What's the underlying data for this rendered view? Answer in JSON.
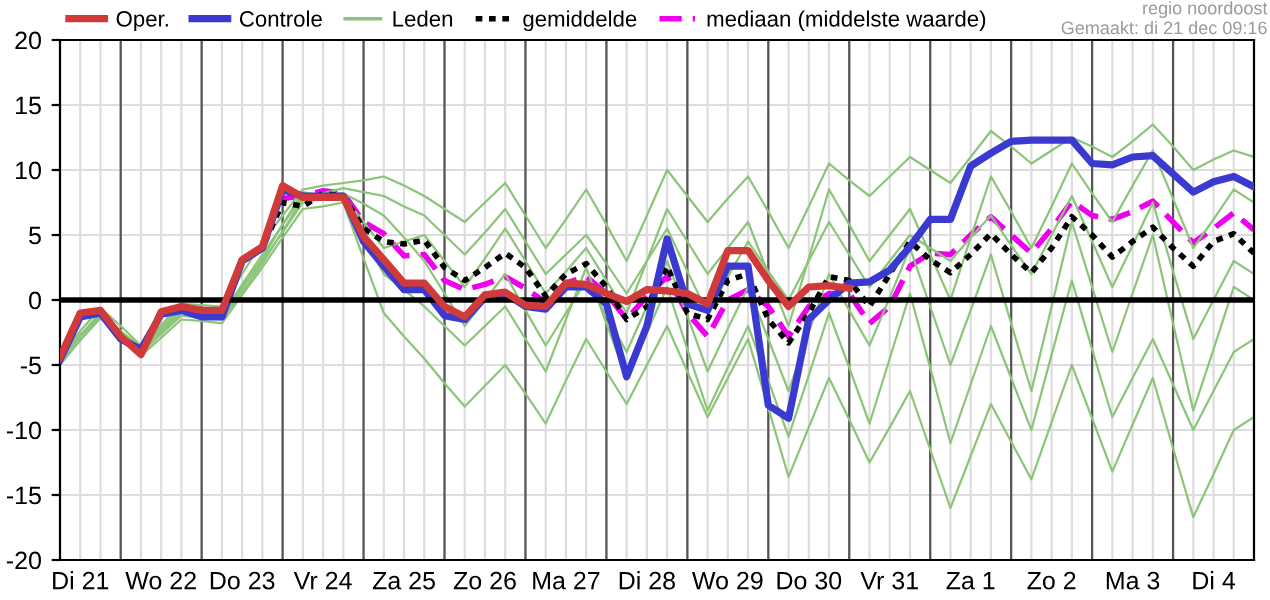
{
  "chart_data": {
    "type": "line",
    "annotations": [
      "regio noordoost",
      "Gemaakt: di 21 dec 09:16"
    ],
    "categories": [
      null,
      "Di 21",
      null,
      null,
      null,
      "Wo 22",
      null,
      null,
      null,
      "Do 23",
      null,
      null,
      null,
      "Vr 24",
      null,
      null,
      null,
      "Za 25",
      null,
      null,
      null,
      "Zo 26",
      null,
      null,
      null,
      "Ma 27",
      null,
      null,
      null,
      "Di 28",
      null,
      null,
      null,
      "Wo 29",
      null,
      null,
      null,
      "Do 30",
      null,
      null,
      null,
      "Vr 31",
      null,
      null,
      null,
      "Za 1",
      null,
      null,
      null,
      "Zo 2",
      null,
      null,
      null,
      "Ma 3",
      null,
      null,
      null,
      "Di 4",
      null,
      null
    ],
    "ylim": [
      -20,
      20
    ],
    "yticks": [
      -20,
      -15,
      -10,
      -5,
      0,
      5,
      10,
      15,
      20
    ],
    "grid": true,
    "legend": "top left",
    "marker": "none",
    "ref_lines": [
      {
        "axis": "y",
        "value": 0,
        "color": "#000000"
      }
    ],
    "series": [
      {
        "name": "Oper.",
        "color": "#d03a3a",
        "line_style": "solid",
        "values": [
          -4.4,
          -1.0,
          -0.8,
          -2.8,
          -4.2,
          -0.9,
          -0.5,
          -0.8,
          -0.8,
          3.1,
          4.1,
          8.8,
          7.9,
          7.9,
          7.9,
          4.9,
          3.1,
          1.3,
          1.3,
          -0.5,
          -1.3,
          0.4,
          0.6,
          -0.4,
          -0.5,
          1.3,
          1.2,
          0.5,
          -0.1,
          0.8,
          0.7,
          0.5,
          -0.3,
          3.8,
          3.8,
          1.5,
          -0.5,
          1.0,
          1.1,
          0.9,
          null,
          null,
          null,
          null,
          null,
          null,
          null,
          null,
          null,
          null,
          null,
          null,
          null,
          null,
          null,
          null,
          null,
          null,
          null,
          null
        ]
      },
      {
        "name": "Controle",
        "color": "#3a3ad0",
        "line_style": "solid",
        "values": [
          -4.6,
          -1.3,
          -1.0,
          -3.0,
          -3.8,
          -1.1,
          -0.8,
          -1.3,
          -1.3,
          3.0,
          4.0,
          8.5,
          8.0,
          8.0,
          8.0,
          4.5,
          2.6,
          0.8,
          0.8,
          -1.2,
          -1.5,
          0.2,
          0.5,
          -0.5,
          -0.7,
          1.0,
          1.0,
          -0.3,
          -5.9,
          -2.0,
          4.7,
          -0.3,
          -0.8,
          2.6,
          2.6,
          -8.1,
          -9.1,
          -1.5,
          0.0,
          1.3,
          1.4,
          2.3,
          4.1,
          6.2,
          6.2,
          10.3,
          11.3,
          12.2,
          12.3,
          12.3,
          12.3,
          10.5,
          10.4,
          11.0,
          11.1,
          9.7,
          8.3,
          9.1,
          9.5,
          8.7
        ]
      },
      {
        "name": "Leden",
        "color": "#8cc47a",
        "line_style": "solid",
        "values": [
          -4.2,
          -2.4,
          -0.6,
          -2.0,
          -3.5,
          -1.9,
          -0.3,
          -0.4,
          -0.5,
          2.0,
          4.5,
          6.5,
          8.5,
          8.8,
          9.0,
          9.2,
          9.5,
          8.8,
          8.0,
          7.0,
          6.0,
          7.5,
          9.0,
          6.5,
          4.0,
          6.2,
          8.5,
          5.8,
          3.0,
          6.5,
          10.0,
          8.0,
          6.0,
          7.8,
          9.5,
          6.8,
          4.0,
          7.2,
          10.5,
          9.2,
          8.0,
          9.5,
          11.0,
          10.0,
          9.0,
          11.0,
          13.0,
          11.8,
          10.5,
          11.5,
          12.5,
          11.8,
          11.0,
          12.2,
          13.5,
          11.8,
          10.0,
          10.8,
          11.5,
          11.0
        ]
      },
      {
        "color": "#8cc47a",
        "line_style": "solid",
        "values": [
          -5.0,
          -3.1,
          -1.2,
          -2.8,
          -4.3,
          -2.9,
          -1.5,
          -1.6,
          -1.8,
          0.4,
          2.5,
          4.8,
          7.0,
          7.2,
          7.5,
          3.2,
          -1.0,
          -2.8,
          -4.5,
          -6.4,
          -8.2,
          -6.6,
          -5.0,
          -7.2,
          -9.5,
          -6.2,
          -3.0,
          -5.5,
          -8.0,
          -5.0,
          -2.0,
          -5.5,
          -9.0,
          -6.0,
          -3.0,
          -8.3,
          -13.6,
          -9.8,
          -6.0,
          -9.2,
          -12.5,
          -9.8,
          -7.0,
          -11.5,
          -16.0,
          -12.0,
          -8.0,
          -10.9,
          -13.8,
          -9.4,
          -5.0,
          -9.1,
          -13.2,
          -9.6,
          -6.0,
          -11.4,
          -16.7,
          -13.4,
          -10.0,
          -9.0
        ]
      },
      {
        "color": "#8cc47a",
        "line_style": "solid",
        "values": [
          -4.6,
          -2.8,
          -0.9,
          -2.4,
          -3.8,
          -2.3,
          -0.8,
          -1.0,
          -1.2,
          1.2,
          3.5,
          5.8,
          8.0,
          8.1,
          8.2,
          7.4,
          6.5,
          4.8,
          3.0,
          0.5,
          -2.0,
          0.0,
          2.0,
          -0.8,
          -3.5,
          -1.0,
          1.5,
          -1.2,
          -4.0,
          -0.5,
          3.0,
          -1.2,
          -5.5,
          -2.2,
          1.0,
          -3.0,
          -7.0,
          -2.5,
          2.0,
          -0.8,
          -3.5,
          0.2,
          4.0,
          -0.5,
          -5.0,
          -0.8,
          3.5,
          -1.8,
          -7.0,
          -0.5,
          6.0,
          1.0,
          -4.0,
          0.5,
          5.0,
          -1.8,
          -8.5,
          -3.8,
          1.0,
          0.0
        ]
      },
      {
        "color": "#8cc47a",
        "line_style": "solid",
        "values": [
          -4.5,
          -2.8,
          -1.0,
          -2.5,
          -4.0,
          -2.5,
          -1.0,
          -1.0,
          -1.0,
          1.0,
          3.0,
          5.2,
          7.5,
          7.8,
          8.0,
          6.0,
          4.0,
          4.5,
          5.0,
          3.0,
          1.0,
          3.2,
          5.5,
          3.0,
          0.5,
          2.2,
          4.0,
          1.5,
          -1.0,
          3.0,
          7.0,
          4.5,
          2.0,
          4.0,
          6.0,
          2.0,
          -2.0,
          3.2,
          8.5,
          5.8,
          3.0,
          5.0,
          7.0,
          3.5,
          0.0,
          4.8,
          9.5,
          6.8,
          4.0,
          7.2,
          10.5,
          8.2,
          6.0,
          8.8,
          11.5,
          7.8,
          4.0,
          6.2,
          8.5,
          7.5
        ]
      },
      {
        "color": "#8cc47a",
        "line_style": "solid",
        "values": [
          -4.3,
          -2.7,
          -1.1,
          -2.4,
          -3.6,
          -2.1,
          -0.6,
          -1.0,
          -1.4,
          0.9,
          3.2,
          5.8,
          8.3,
          8.0,
          7.8,
          4.9,
          2.0,
          0.8,
          -0.5,
          -2.0,
          -3.5,
          -2.0,
          -0.5,
          -3.0,
          -5.5,
          -1.5,
          2.5,
          -1.8,
          -6.0,
          -2.5,
          1.0,
          -3.8,
          -8.5,
          -5.2,
          -2.0,
          -6.2,
          -10.5,
          -5.8,
          -1.0,
          -5.2,
          -9.5,
          -4.5,
          0.5,
          -5.2,
          -11.0,
          -6.5,
          -2.0,
          -6.0,
          -10.0,
          -4.2,
          1.5,
          -3.8,
          -9.0,
          -6.0,
          -3.0,
          -6.5,
          -10.0,
          -7.0,
          -4.0,
          -3.0
        ]
      },
      {
        "color": "#8cc47a",
        "line_style": "solid",
        "values": [
          -4.8,
          -3.1,
          -1.4,
          -2.8,
          -4.1,
          -2.6,
          -1.2,
          -1.4,
          -1.5,
          0.6,
          2.8,
          5.3,
          7.8,
          8.2,
          8.6,
          8.3,
          8.0,
          7.2,
          6.5,
          5.0,
          3.5,
          5.2,
          7.0,
          4.5,
          2.0,
          3.5,
          5.0,
          2.8,
          0.5,
          3.0,
          5.5,
          2.2,
          -1.0,
          1.8,
          4.5,
          2.2,
          0.0,
          3.0,
          6.0,
          3.5,
          1.0,
          3.0,
          5.0,
          4.0,
          3.0,
          4.8,
          6.5,
          4.2,
          2.0,
          5.0,
          8.0,
          4.5,
          1.0,
          4.2,
          7.5,
          2.2,
          -3.0,
          0.0,
          3.0,
          2.0
        ]
      },
      {
        "name": "gemiddelde",
        "color": "#000000",
        "line_style": "dotted",
        "values": [
          -4.5,
          -1.1,
          -0.9,
          -3.0,
          -4.0,
          -1.0,
          -0.6,
          -1.0,
          -1.0,
          3.0,
          4.0,
          7.5,
          7.2,
          8.2,
          8.0,
          5.5,
          4.5,
          4.3,
          4.6,
          2.5,
          1.5,
          2.5,
          3.6,
          2.5,
          0.3,
          2.0,
          2.8,
          1.0,
          -1.5,
          -0.5,
          2.6,
          -1.0,
          -1.5,
          1.5,
          2.0,
          -1.5,
          -3.3,
          -1.0,
          1.8,
          1.5,
          -0.5,
          2.0,
          4.5,
          3.1,
          2.1,
          3.5,
          5.1,
          3.5,
          2.1,
          4.0,
          6.4,
          5.0,
          3.3,
          4.5,
          5.6,
          4.0,
          2.6,
          4.5,
          5.1,
          3.6
        ]
      },
      {
        "name": "mediaan (middelste waarde)",
        "color": "#ee00ee",
        "line_style": "dashed",
        "values": [
          null,
          null,
          null,
          null,
          null,
          null,
          null,
          null,
          null,
          null,
          null,
          7.8,
          8.0,
          8.4,
          8.2,
          6.0,
          5.1,
          3.4,
          3.5,
          1.5,
          0.8,
          1.2,
          1.8,
          0.9,
          -0.2,
          1.3,
          1.8,
          0.5,
          -1.5,
          0.3,
          1.8,
          -1.0,
          -2.8,
          0.0,
          0.8,
          -0.5,
          -2.8,
          -0.5,
          0.5,
          0.5,
          -1.8,
          -0.5,
          2.6,
          3.6,
          3.5,
          5.0,
          6.4,
          5.0,
          3.6,
          5.5,
          7.6,
          6.5,
          6.2,
          6.8,
          7.6,
          6.0,
          4.4,
          5.5,
          6.7,
          5.4
        ]
      }
    ]
  }
}
